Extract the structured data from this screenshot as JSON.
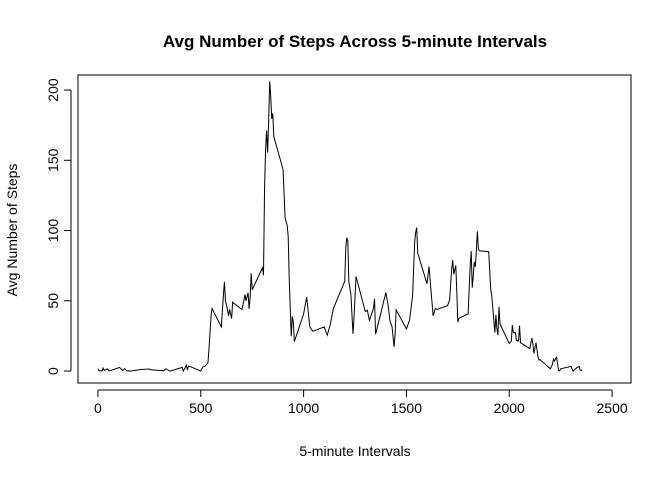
{
  "chart_data": {
    "type": "line",
    "title": "Avg Number of Steps Across 5-minute Intervals",
    "x_label": "5-minute Intervals",
    "y_label": "Avg Number of Steps",
    "color": "#000000",
    "xlim": [
      -97,
      2592
    ],
    "ylim": [
      -8.5,
      210.7
    ],
    "xticks": [
      0,
      500,
      1000,
      1500,
      2000,
      2500
    ],
    "yticks": [
      0,
      50,
      100,
      150,
      200
    ],
    "grid": false,
    "x": [
      0,
      5,
      10,
      20,
      25,
      30,
      45,
      55,
      105,
      120,
      130,
      140,
      155,
      210,
      250,
      255,
      320,
      330,
      350,
      410,
      415,
      430,
      435,
      440,
      450,
      500,
      510,
      520,
      535,
      540,
      550,
      555,
      600,
      610,
      615,
      620,
      625,
      635,
      640,
      650,
      655,
      700,
      710,
      715,
      720,
      730,
      735,
      740,
      745,
      750,
      800,
      805,
      810,
      815,
      820,
      825,
      830,
      835,
      840,
      845,
      850,
      855,
      900,
      910,
      920,
      925,
      930,
      935,
      940,
      945,
      950,
      955,
      1000,
      1015,
      1030,
      1045,
      1100,
      1115,
      1130,
      1145,
      1200,
      1205,
      1210,
      1215,
      1220,
      1230,
      1240,
      1245,
      1255,
      1300,
      1310,
      1320,
      1330,
      1340,
      1345,
      1350,
      1400,
      1410,
      1420,
      1430,
      1440,
      1445,
      1450,
      1500,
      1515,
      1530,
      1540,
      1545,
      1550,
      1555,
      1600,
      1610,
      1620,
      1630,
      1640,
      1650,
      1700,
      1710,
      1720,
      1725,
      1730,
      1740,
      1745,
      1750,
      1755,
      1800,
      1810,
      1815,
      1820,
      1825,
      1830,
      1835,
      1840,
      1845,
      1850,
      1855,
      1900,
      1910,
      1915,
      1930,
      1935,
      1940,
      1945,
      1950,
      1955,
      2000,
      2010,
      2015,
      2020,
      2030,
      2035,
      2045,
      2050,
      2055,
      2100,
      2110,
      2115,
      2120,
      2130,
      2140,
      2145,
      2150,
      2200,
      2210,
      2215,
      2220,
      2225,
      2230,
      2240,
      2245,
      2250,
      2300,
      2310,
      2330,
      2340,
      2345,
      2350,
      2355
    ],
    "values": [
      1.7,
      0.3,
      0.1,
      0.1,
      2.1,
      0.5,
      1.5,
      0.1,
      2.6,
      0.4,
      1.8,
      0.2,
      0,
      1.1,
      1.5,
      0.9,
      0.2,
      1.6,
      0,
      2.6,
      0,
      4.1,
      0.7,
      3.5,
      3.1,
      0,
      3,
      3.3,
      6,
      16,
      39.5,
      44.5,
      31.5,
      53.8,
      63.5,
      50,
      47.1,
      39.3,
      44,
      37.4,
      49,
      43.8,
      50.5,
      54.5,
      49.9,
      55.7,
      44.3,
      52.3,
      69.5,
      57.8,
      73.4,
      68.2,
      129.4,
      157.5,
      171.2,
      155.4,
      177.3,
      206.2,
      195.9,
      179.6,
      183.4,
      167,
      143.5,
      109.1,
      103.7,
      96,
      66.2,
      45.2,
      24.8,
      38.8,
      35,
      21,
      40.6,
      52.7,
      31.6,
      28.3,
      31.4,
      25.5,
      33.4,
      44.6,
      63.9,
      87.7,
      94.8,
      92.8,
      63.4,
      54.5,
      26.5,
      37.7,
      67.3,
      42.3,
      43.3,
      36.1,
      40.4,
      44.8,
      51.3,
      26.2,
      55.8,
      47.8,
      35.7,
      31.6,
      17.2,
      26.4,
      43.6,
      30,
      36.1,
      53.6,
      91.5,
      98.7,
      102.1,
      83.9,
      62.1,
      74.5,
      56.2,
      39.3,
      44.5,
      43.9,
      46.6,
      50.5,
      72.7,
      78.9,
      68.9,
      75.1,
      56.5,
      34.8,
      37.5,
      40.7,
      74.7,
      85.3,
      59.3,
      67.8,
      77.7,
      74.2,
      85.3,
      99.5,
      86.6,
      85.6,
      84.9,
      58,
      53.4,
      27.4,
      40,
      30.2,
      25.5,
      45.7,
      33.5,
      19.6,
      21.3,
      32.8,
      27.3,
      27.3,
      21.7,
      21.3,
      32.3,
      20.2,
      15.9,
      23.5,
      19.2,
      12.5,
      20.2,
      10,
      7.8,
      8.1,
      1.6,
      4.8,
      8.5,
      7.1,
      8.7,
      9.8,
      0.3,
      0.1,
      1.6,
      3.3,
      0,
      2.6,
      3.3,
      0.6,
      0.2,
      1.1
    ]
  }
}
